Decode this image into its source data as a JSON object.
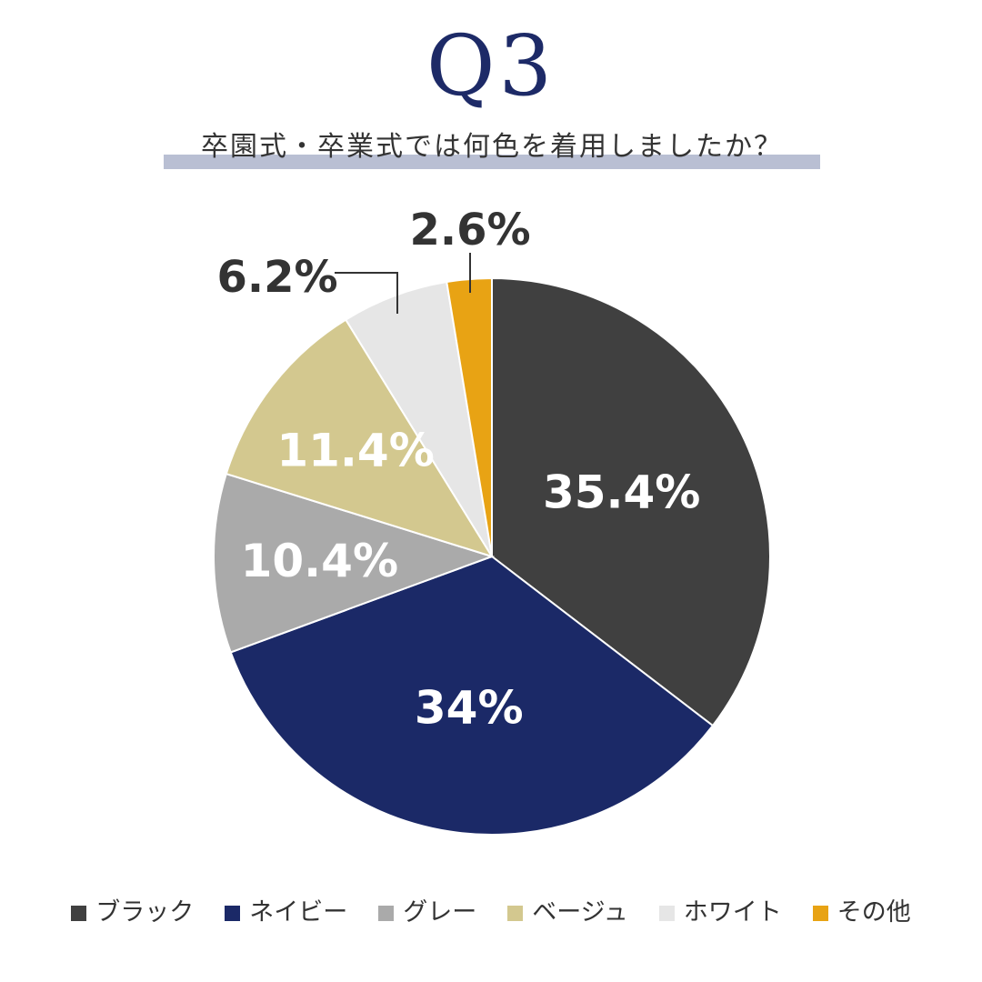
{
  "header": {
    "title": "Q3",
    "subtitle": "卒園式・卒業式では何色を着用しましたか？"
  },
  "chart_data": {
    "type": "pie",
    "title": "Q3",
    "subtitle": "卒園式・卒業式では何色を着用しましたか？",
    "start": "12 o'clock",
    "direction": "clockwise",
    "slices": [
      {
        "name": "ブラック",
        "value": 35.4,
        "label": "35.4%",
        "color": "#404040",
        "label_color": "#ffffff"
      },
      {
        "name": "ネイビー",
        "value": 34,
        "label": "34%",
        "color": "#1b2967",
        "label_color": "#ffffff"
      },
      {
        "name": "グレー",
        "value": 10.4,
        "label": "10.4%",
        "color": "#aaaaaa",
        "label_color": "#ffffff"
      },
      {
        "name": "ベージュ",
        "value": 11.4,
        "label": "11.4%",
        "color": "#d3c88f",
        "label_color": "#ffffff"
      },
      {
        "name": "ホワイト",
        "value": 6.2,
        "label": "6.2%",
        "color": "#e6e6e6",
        "label_color": "#333333"
      },
      {
        "name": "その他",
        "value": 2.6,
        "label": "2.6%",
        "color": "#e8a314",
        "label_color": "#333333"
      }
    ],
    "legend_position": "bottom"
  }
}
